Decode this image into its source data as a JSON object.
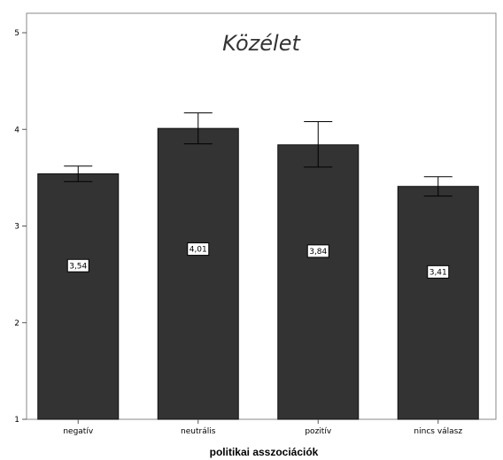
{
  "chart_data": {
    "type": "bar",
    "title": "Közélet",
    "xlabel": "politikai asszociációk",
    "ylabel": "",
    "categories": [
      "negatív",
      "neutrális",
      "pozitív",
      "nincs válasz"
    ],
    "values": [
      3.54,
      4.01,
      3.84,
      3.41
    ],
    "value_labels": [
      "3,54",
      "4,01",
      "3,84",
      "3,41"
    ],
    "error_low": [
      3.46,
      3.85,
      3.61,
      3.31
    ],
    "error_high": [
      3.62,
      4.17,
      4.08,
      3.51
    ],
    "ylim": [
      1,
      5
    ],
    "yticks": [
      "1",
      "2",
      "3",
      "4",
      "5"
    ],
    "grid": false,
    "bar_color": "#333333"
  }
}
